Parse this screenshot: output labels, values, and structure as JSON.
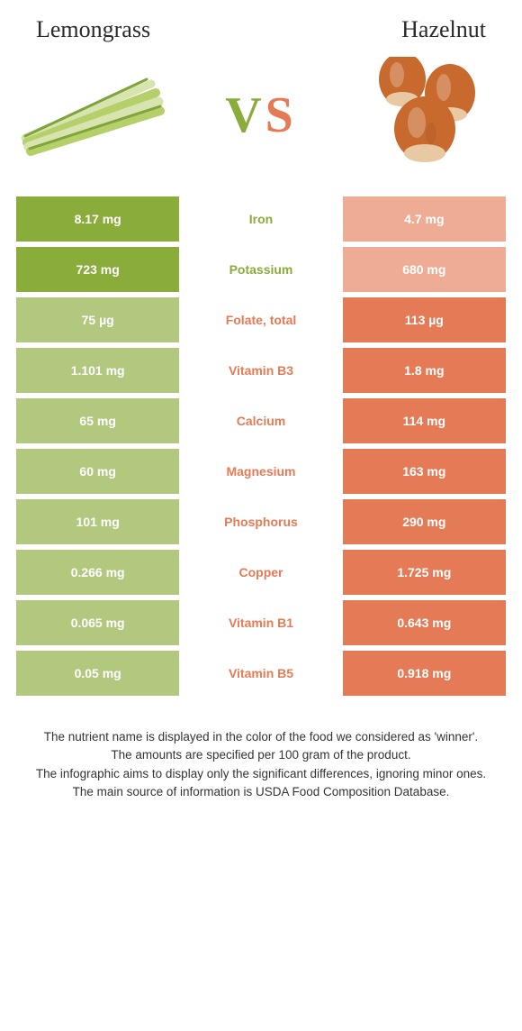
{
  "header": {
    "left": "Lemongrass",
    "right": "Hazelnut",
    "vs_v": "V",
    "vs_s": "S"
  },
  "colors": {
    "left": "#8aac3a",
    "left_dim": "#b2c87f",
    "right": "#e57a56",
    "right_dim": "#efac95",
    "vs_v": "#8aac3a",
    "vs_s": "#e57a56",
    "nut_shell": "#c86a2e",
    "nut_base": "#e8c9a4",
    "nut_shadow": "#a85420",
    "stalk_light": "#d8e4b0",
    "stalk_med": "#b5cf6a",
    "stalk_dark": "#7ea43a"
  },
  "rows": [
    {
      "label": "Iron",
      "left": "8.17 mg",
      "right": "4.7 mg",
      "winner": "left"
    },
    {
      "label": "Potassium",
      "left": "723 mg",
      "right": "680 mg",
      "winner": "left"
    },
    {
      "label": "Folate, total",
      "left": "75 µg",
      "right": "113 µg",
      "winner": "right"
    },
    {
      "label": "Vitamin B3",
      "left": "1.101 mg",
      "right": "1.8 mg",
      "winner": "right"
    },
    {
      "label": "Calcium",
      "left": "65 mg",
      "right": "114 mg",
      "winner": "right"
    },
    {
      "label": "Magnesium",
      "left": "60 mg",
      "right": "163 mg",
      "winner": "right"
    },
    {
      "label": "Phosphorus",
      "left": "101 mg",
      "right": "290 mg",
      "winner": "right"
    },
    {
      "label": "Copper",
      "left": "0.266 mg",
      "right": "1.725 mg",
      "winner": "right"
    },
    {
      "label": "Vitamin B1",
      "left": "0.065 mg",
      "right": "0.643 mg",
      "winner": "right"
    },
    {
      "label": "Vitamin B5",
      "left": "0.05 mg",
      "right": "0.918 mg",
      "winner": "right"
    }
  ],
  "footnotes": {
    "l1": "The nutrient name is displayed in the color of the food we considered as 'winner'.",
    "l2": "The amounts are specified per 100 gram of the product.",
    "l3": "The infographic aims to display only the significant differences, ignoring minor ones.",
    "l4": "The main source of information is USDA Food Composition Database."
  }
}
